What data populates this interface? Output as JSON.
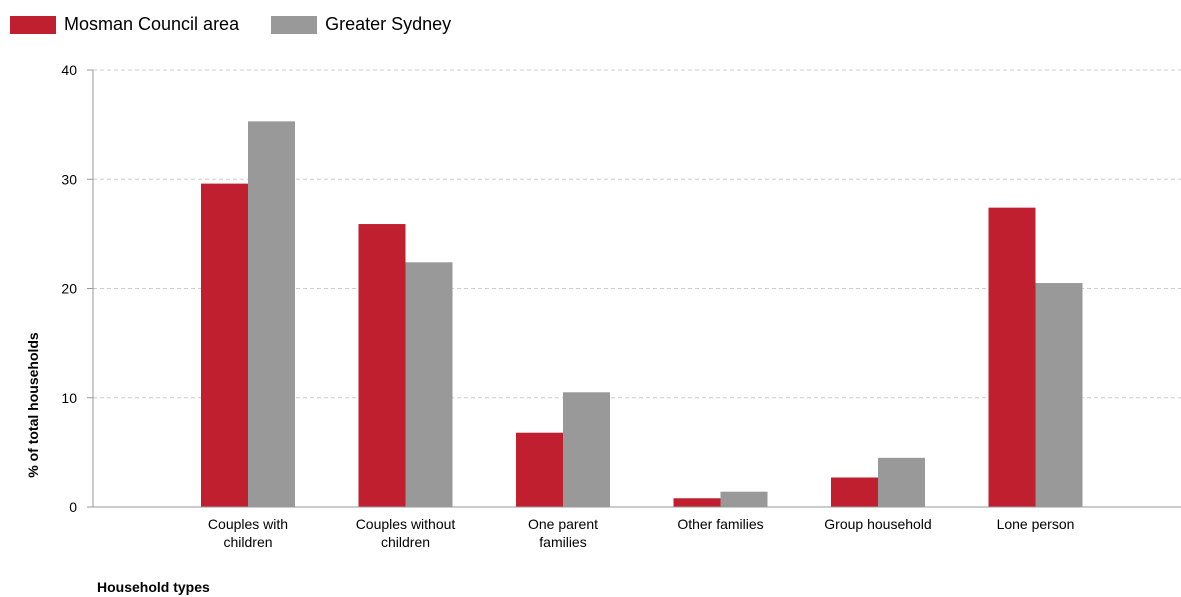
{
  "chart_data": {
    "type": "bar",
    "categories": [
      [
        "Couples with",
        "children"
      ],
      [
        "Couples without",
        "children"
      ],
      [
        "One parent",
        "families"
      ],
      [
        "Other families"
      ],
      [
        "Group household"
      ],
      [
        "Lone person"
      ]
    ],
    "series": [
      {
        "name": "Mosman Council area",
        "color": "#c01f2f",
        "values": [
          29.6,
          25.9,
          6.8,
          0.8,
          2.7,
          27.4
        ]
      },
      {
        "name": "Greater Sydney",
        "color": "#999999",
        "values": [
          35.3,
          22.4,
          10.5,
          1.4,
          4.5,
          20.5
        ]
      }
    ],
    "xlabel": "Household types",
    "ylabel": "% of total households",
    "ylim": [
      0,
      40
    ],
    "yticks": [
      0,
      10,
      20,
      30,
      40
    ],
    "grid": true,
    "legend": "top-left"
  }
}
